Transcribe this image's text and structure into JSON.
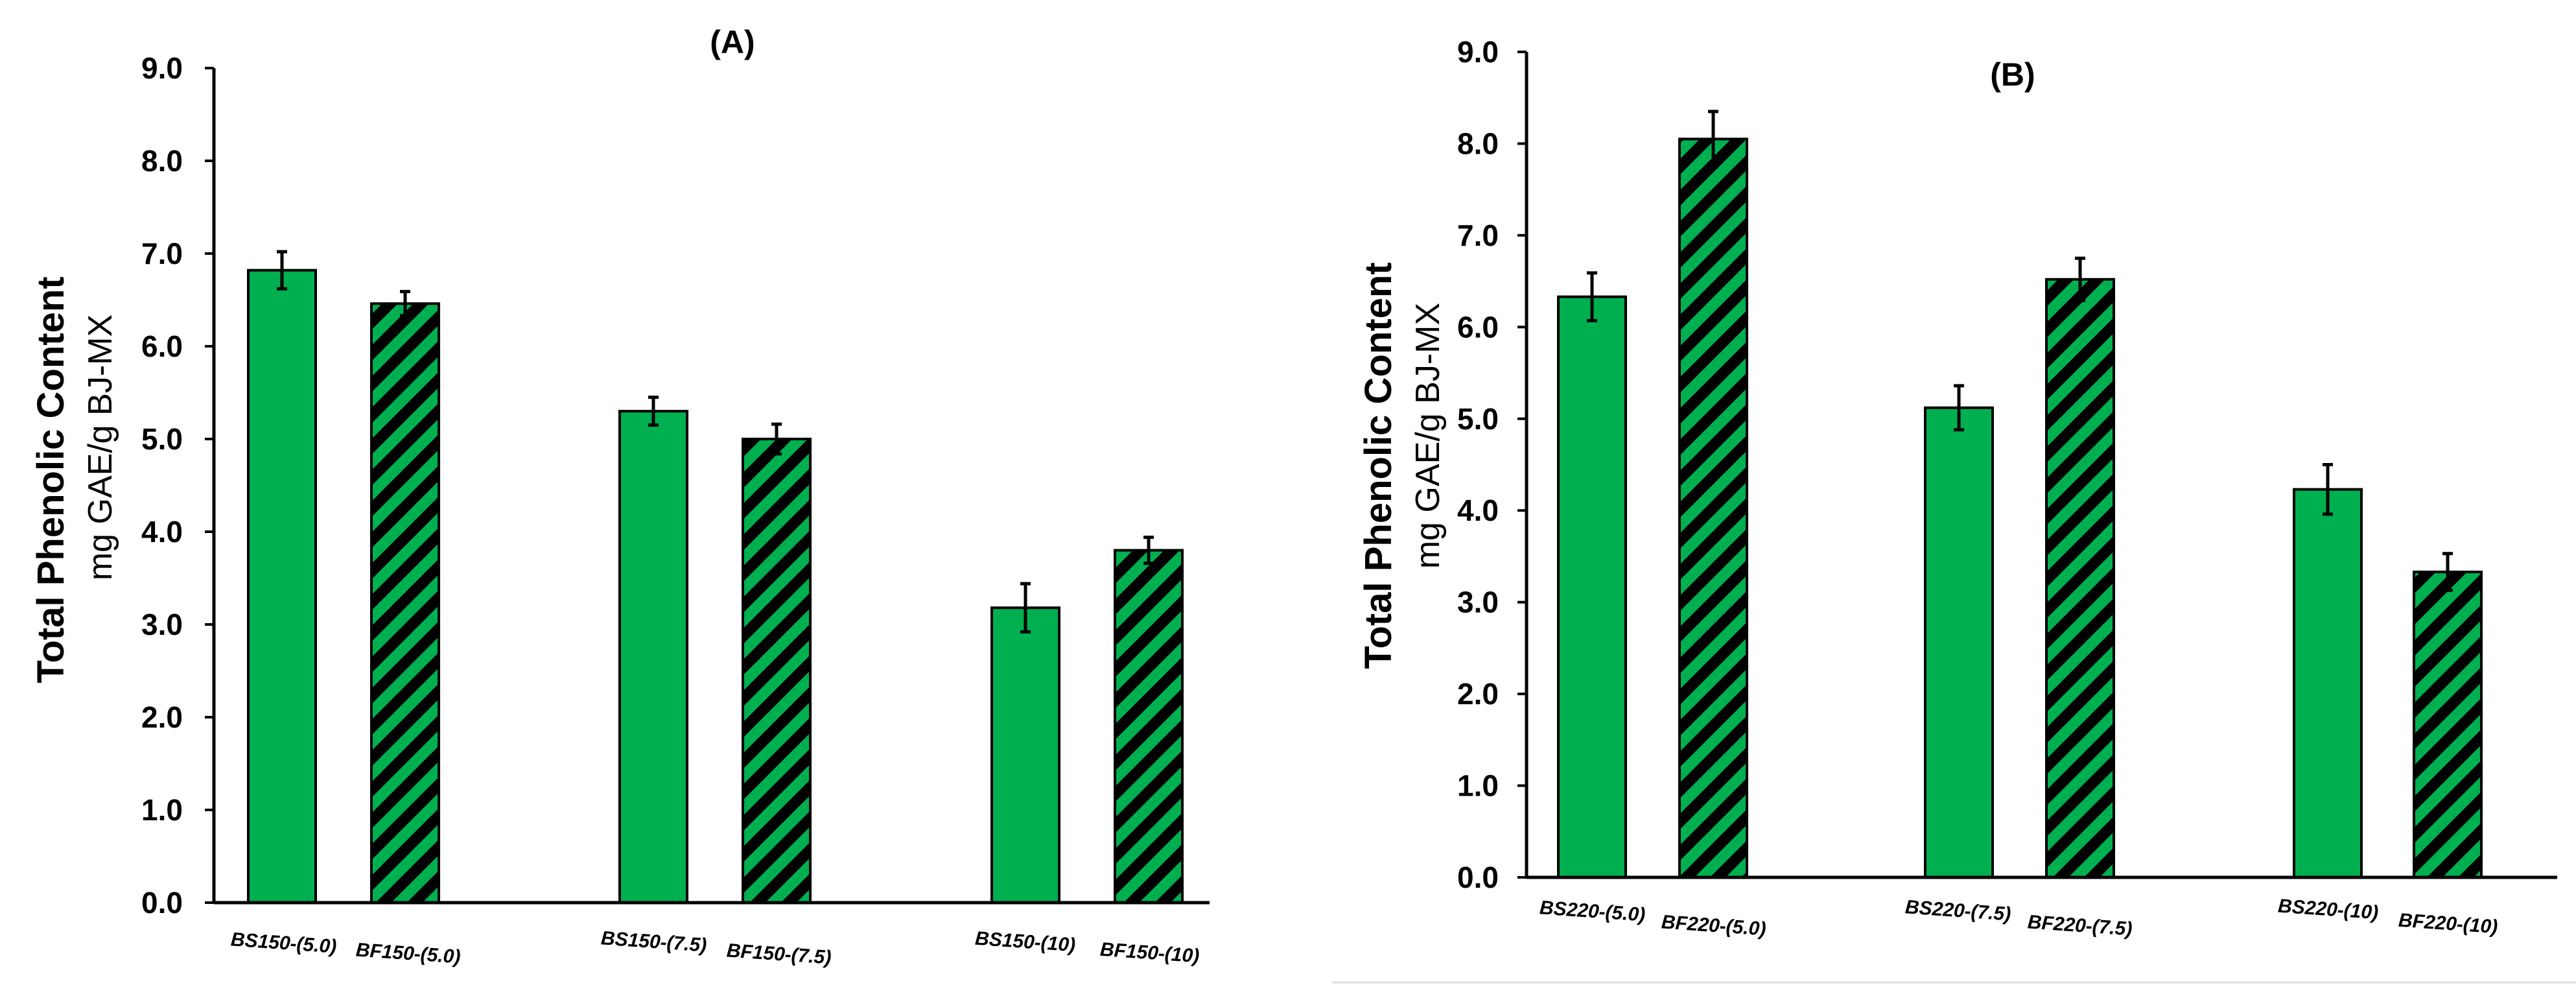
{
  "colors": {
    "bar_fill": "#00b050",
    "hatch": "#000000",
    "axis": "#000000",
    "bar_outline": "#000000"
  },
  "chart_data": [
    {
      "type": "bar",
      "title": "(A)",
      "ylabel": "Total Phenolic Content",
      "ylabel_sub": "mg GAE/g BJ-MX",
      "xlabel": "",
      "ylim": [
        0,
        9
      ],
      "ytick_step": 1,
      "yticks": [
        "0.0",
        "1.0",
        "2.0",
        "3.0",
        "4.0",
        "5.0",
        "6.0",
        "7.0",
        "8.0",
        "9.0"
      ],
      "grid": false,
      "categories": [
        "BS150-(5.0)",
        "BF150-(5.0)",
        "BS150-(7.5)",
        "BF150-(7.5)",
        "BS150-(10)",
        "BF150-(10)"
      ],
      "values": [
        6.82,
        6.46,
        5.3,
        5.0,
        3.18,
        3.8
      ],
      "errors": [
        0.2,
        0.13,
        0.15,
        0.16,
        0.26,
        0.14
      ],
      "patterns": [
        "solid",
        "hatched",
        "solid",
        "hatched",
        "solid",
        "hatched"
      ]
    },
    {
      "type": "bar",
      "title": "(B)",
      "ylabel": "Total Phenolic Content",
      "ylabel_sub": "mg GAE/g BJ-MX",
      "xlabel": "",
      "ylim": [
        0,
        9
      ],
      "ytick_step": 1,
      "yticks": [
        "0.0",
        "1.0",
        "2.0",
        "3.0",
        "4.0",
        "5.0",
        "6.0",
        "7.0",
        "8.0",
        "9.0"
      ],
      "grid": false,
      "categories": [
        "BS220-(5.0)",
        "BF220-(5.0)",
        "BS220-(7.5)",
        "BF220-(7.5)",
        "BS220-(10)",
        "BF220-(10)"
      ],
      "values": [
        6.33,
        8.05,
        5.12,
        6.52,
        4.23,
        3.33
      ],
      "errors": [
        0.26,
        0.3,
        0.24,
        0.23,
        0.27,
        0.2
      ],
      "patterns": [
        "solid",
        "hatched",
        "solid",
        "hatched",
        "solid",
        "hatched"
      ]
    }
  ]
}
